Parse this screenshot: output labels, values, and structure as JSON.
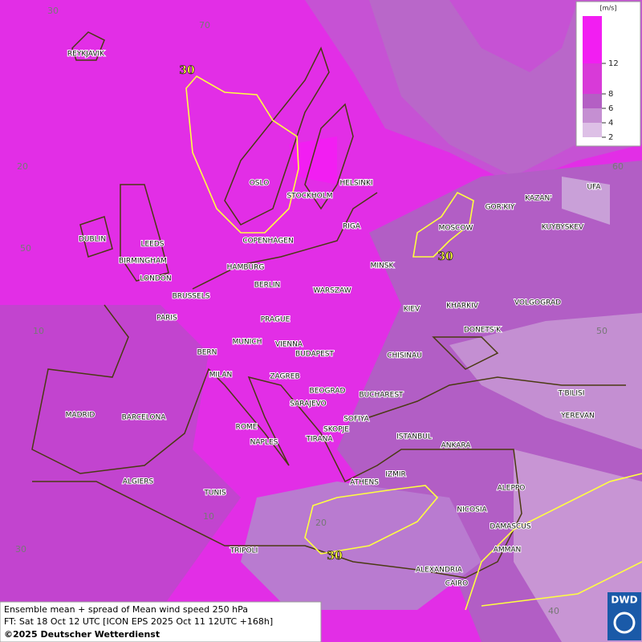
{
  "map": {
    "cities": [
      "REYKJAVIK",
      "OSLO",
      "STOCKHOLM",
      "HELSINKI",
      "RIGA",
      "COPENHAGEN",
      "DUBLIN",
      "LEEDS",
      "BIRMINGHAM",
      "LONDON",
      "HAMBURG",
      "BERLIN",
      "WARSZAW",
      "MINSK",
      "MOSCOW",
      "GOR'KIY",
      "KAZAN'",
      "UFA",
      "KUYBYSKEV",
      "BRUSSELS",
      "PARIS",
      "PRAGUE",
      "KIEV",
      "KHARKIV",
      "VOLGOGRAD",
      "DONETS'K",
      "BERN",
      "MUNICH",
      "VIENNA",
      "BUDAPEST",
      "CHISINAU",
      "MILAN",
      "ZAGREB",
      "BEOGRAD",
      "BUCHAREST",
      "T'BILISI",
      "SARAJEVO",
      "SOFIYA",
      "YEREVAN",
      "MADRID",
      "BARCELONA",
      "ROME",
      "SKOPJE",
      "TIRANA",
      "ISTANBUL",
      "ANKARA",
      "NAPLES",
      "ALGIERS",
      "TUNIS",
      "ATHENS",
      "IZMIR",
      "ALEPPO",
      "NICOSIA",
      "DAMASCUS",
      "AMMAN",
      "TRIPOLI",
      "ALEXANDRIA",
      "CAIRO"
    ],
    "grid_labels": [
      30,
      70,
      20,
      60,
      50,
      10,
      50,
      10,
      20,
      30,
      40
    ],
    "contour_labels": [
      30,
      30,
      30
    ]
  },
  "legend": {
    "unit": "[m/s]",
    "ticks": [
      12,
      8,
      6,
      4,
      2
    ]
  },
  "caption": {
    "line1": "Ensemble mean + spread of Mean wind speed 250 hPa",
    "line2": "FT: Sat 18 Oct 12 UTC [ICON EPS 2025 Oct 11 12UTC +168h]",
    "copyright": "©2025 Deutscher Wetterdienst"
  },
  "logo": "DWD"
}
